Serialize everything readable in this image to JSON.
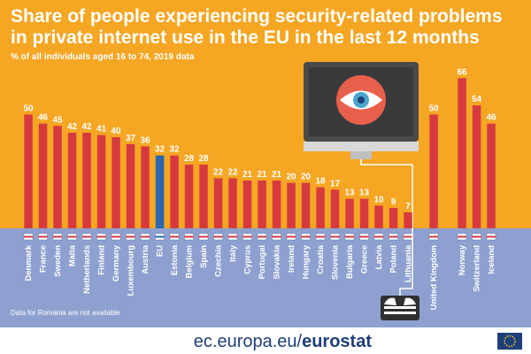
{
  "chart_data": {
    "type": "bar",
    "title_line1": "Share of people experiencing security-related problems",
    "title_line2": "in private internet use in the EU in the last 12 months",
    "subtitle": "% of all individuals aged 16 to 74, 2019 data",
    "note": "Data for Romania are not available",
    "ylim": [
      0,
      70
    ],
    "colors": {
      "bar": "#d63a3f",
      "eu_bar": "#2a66b2",
      "background": "#f5a623",
      "lower": "#8ea0cf",
      "monitor_screen": "#3a3a3a",
      "eye": "#e8604c"
    },
    "groups": [
      {
        "categories": [
          "Denmark",
          "France",
          "Sweden",
          "Malta",
          "Netherlands",
          "Finland",
          "Germany",
          "Luxembourg",
          "Austria",
          "EU",
          "Estonia",
          "Belgium",
          "Spain",
          "Czechia",
          "Italy",
          "Cyprus",
          "Portugal",
          "Slovakia",
          "Ireland",
          "Hungary",
          "Croatia",
          "Slovenia",
          "Bulgaria",
          "Greece",
          "Latvia",
          "Poland",
          "Lithuania"
        ],
        "values": [
          50,
          46,
          45,
          42,
          42,
          41,
          40,
          37,
          36,
          32,
          32,
          28,
          28,
          22,
          22,
          21,
          21,
          21,
          20,
          20,
          18,
          17,
          13,
          13,
          10,
          9,
          7
        ]
      },
      {
        "categories": [
          "United Kingdom"
        ],
        "values": [
          50
        ]
      },
      {
        "categories": [
          "Norway",
          "Switzerland",
          "Iceland"
        ],
        "values": [
          66,
          54,
          46
        ]
      }
    ],
    "flag_icons": [
      "denmark-flag-icon",
      "france-flag-icon",
      "sweden-flag-icon",
      "malta-flag-icon",
      "netherlands-flag-icon",
      "finland-flag-icon",
      "germany-flag-icon",
      "luxembourg-flag-icon",
      "austria-flag-icon",
      "eu-flag-icon",
      "estonia-flag-icon",
      "belgium-flag-icon",
      "spain-flag-icon",
      "czechia-flag-icon",
      "italy-flag-icon",
      "cyprus-flag-icon",
      "portugal-flag-icon",
      "slovakia-flag-icon",
      "ireland-flag-icon",
      "hungary-flag-icon",
      "croatia-flag-icon",
      "slovenia-flag-icon",
      "bulgaria-flag-icon",
      "greece-flag-icon",
      "latvia-flag-icon",
      "poland-flag-icon",
      "lithuania-flag-icon",
      "united-kingdom-flag-icon",
      "norway-flag-icon",
      "switzerland-flag-icon",
      "iceland-flag-icon"
    ]
  },
  "footer": {
    "site_prefix": "ec.europa.eu/",
    "site_brand": "eurostat"
  },
  "icons": {
    "monitor": "monitor-eye-icon",
    "keyboard": "hands-keyboard-icon",
    "logo": "eu-flag-logo-icon"
  }
}
